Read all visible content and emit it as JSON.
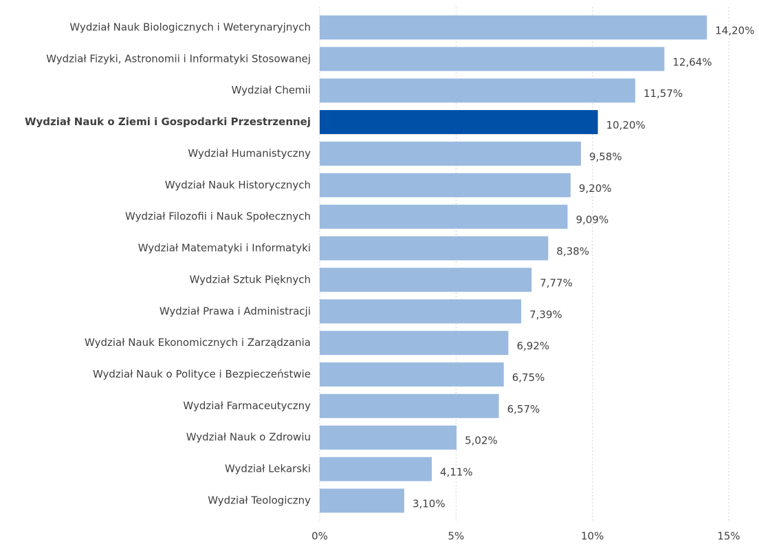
{
  "chart_data": {
    "type": "barh",
    "categories": [
      "Wydział Nauk Biologicznych i Weterynaryjnych",
      "Wydział Fizyki, Astronomii i Informatyki Stosowanej",
      "Wydział Chemii",
      "Wydział Nauk o Ziemi i Gospodarki Przestrzennej",
      "Wydział Humanistyczny",
      "Wydział Nauk Historycznych",
      "Wydział Filozofii i Nauk Społecznych",
      "Wydział Matematyki i Informatyki",
      "Wydział Sztuk Pięknych",
      "Wydział Prawa i Administracji",
      "Wydział Nauk Ekonomicznych i Zarządzania",
      "Wydział Nauk o Polityce i Bezpieczeństwie",
      "Wydział Farmaceutyczny",
      "Wydział Nauk o Zdrowiu",
      "Wydział Lekarski",
      "Wydział Teologiczny"
    ],
    "values": [
      14.2,
      12.64,
      11.57,
      10.2,
      9.58,
      9.2,
      9.09,
      8.38,
      7.77,
      7.39,
      6.92,
      6.75,
      6.57,
      5.02,
      4.11,
      3.1
    ],
    "value_labels": [
      "14,20%",
      "12,64%",
      "11,57%",
      "10,20%",
      "9,58%",
      "9,20%",
      "9,09%",
      "8,38%",
      "7,77%",
      "7,39%",
      "6,92%",
      "6,75%",
      "6,57%",
      "5,02%",
      "4,11%",
      "3,10%"
    ],
    "color": "#9bbae0",
    "highlight_color": "#0050a8",
    "highlight_index": 3,
    "xlim": [
      0,
      15
    ],
    "xticks": [
      {
        "value": 0,
        "label": "0%"
      },
      {
        "value": 5,
        "label": "5%"
      },
      {
        "value": 10,
        "label": "10%"
      },
      {
        "value": 15,
        "label": "15%"
      }
    ],
    "grid": true
  }
}
